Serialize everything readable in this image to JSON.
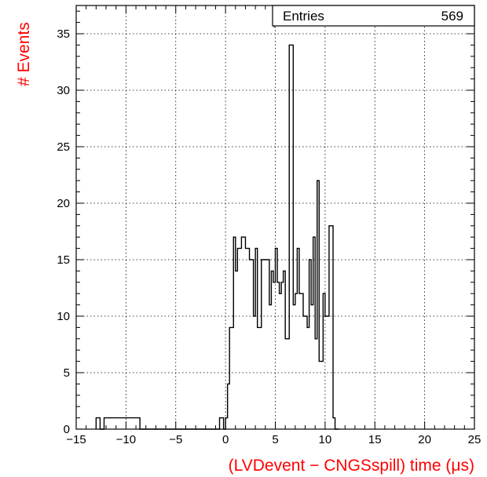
{
  "chart_data": {
    "type": "histogram",
    "xlabel": "(LVDevent − CNGSspill) time (μs)",
    "ylabel": "# Events",
    "label_color": "#ff0000",
    "xlim": [
      -15,
      25
    ],
    "ylim": [
      0,
      37.5
    ],
    "bin_width": 0.4,
    "x_ticks": [
      -15,
      -10,
      -5,
      0,
      5,
      10,
      15,
      20,
      25
    ],
    "y_ticks": [
      0,
      5,
      10,
      15,
      20,
      25,
      30,
      35
    ],
    "grid": true,
    "stats_box": {
      "entries_label": "Entries",
      "entries_value": "569"
    },
    "bins": [
      {
        "x": -13.0,
        "y": 1
      },
      {
        "x": -12.6,
        "y": 0
      },
      {
        "x": -12.2,
        "y": 1
      },
      {
        "x": -9.0,
        "y": 1
      },
      {
        "x": -8.6,
        "y": 0
      },
      {
        "x": -0.6,
        "y": 1
      },
      {
        "x": -0.2,
        "y": 0
      },
      {
        "x": 0.0,
        "y": 1
      },
      {
        "x": 0.2,
        "y": 4
      },
      {
        "x": 0.4,
        "y": 9
      },
      {
        "x": 0.8,
        "y": 17
      },
      {
        "x": 1.0,
        "y": 14
      },
      {
        "x": 1.2,
        "y": 16
      },
      {
        "x": 1.6,
        "y": 17
      },
      {
        "x": 2.0,
        "y": 16
      },
      {
        "x": 2.4,
        "y": 15
      },
      {
        "x": 2.8,
        "y": 10
      },
      {
        "x": 3.0,
        "y": 16
      },
      {
        "x": 3.2,
        "y": 9
      },
      {
        "x": 3.6,
        "y": 15
      },
      {
        "x": 4.0,
        "y": 15
      },
      {
        "x": 4.4,
        "y": 11
      },
      {
        "x": 4.6,
        "y": 14
      },
      {
        "x": 4.8,
        "y": 13
      },
      {
        "x": 5.0,
        "y": 16
      },
      {
        "x": 5.2,
        "y": 13
      },
      {
        "x": 5.4,
        "y": 12
      },
      {
        "x": 5.6,
        "y": 13
      },
      {
        "x": 5.8,
        "y": 14
      },
      {
        "x": 6.0,
        "y": 8
      },
      {
        "x": 6.4,
        "y": 34
      },
      {
        "x": 6.8,
        "y": 11
      },
      {
        "x": 7.0,
        "y": 12
      },
      {
        "x": 7.2,
        "y": 16
      },
      {
        "x": 7.4,
        "y": 12
      },
      {
        "x": 7.8,
        "y": 10
      },
      {
        "x": 8.2,
        "y": 9
      },
      {
        "x": 8.4,
        "y": 15
      },
      {
        "x": 8.6,
        "y": 11
      },
      {
        "x": 8.8,
        "y": 17
      },
      {
        "x": 9.0,
        "y": 8
      },
      {
        "x": 9.2,
        "y": 22
      },
      {
        "x": 9.4,
        "y": 6
      },
      {
        "x": 9.8,
        "y": 12
      },
      {
        "x": 10.0,
        "y": 10
      },
      {
        "x": 10.4,
        "y": 18
      },
      {
        "x": 10.8,
        "y": 1
      },
      {
        "x": 11.0,
        "y": 0
      }
    ]
  }
}
